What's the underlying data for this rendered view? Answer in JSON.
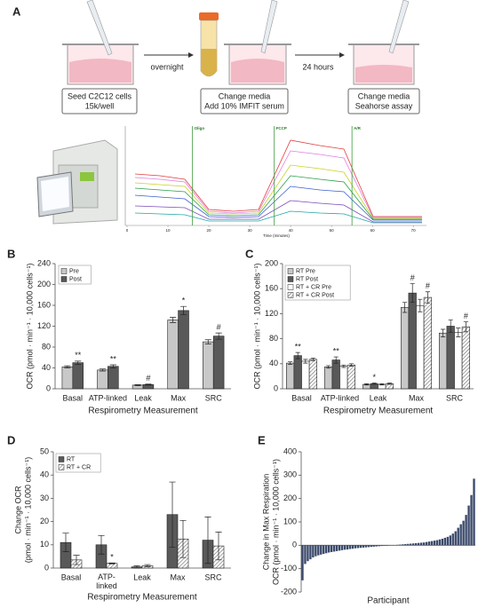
{
  "panel_a": {
    "label": "A",
    "steps": [
      [
        "Seed C2C12 cells",
        "15k/well"
      ],
      [
        "Change media",
        "Add 10% IMFIT serum"
      ],
      [
        "Change media",
        "Seahorse assay"
      ]
    ],
    "arrows": [
      "overnight",
      "24 hours"
    ],
    "inset": {
      "x_label": "Time (minutes)",
      "xlim": [
        0,
        73
      ],
      "xticks": [
        0,
        10,
        20,
        30,
        40,
        50,
        60,
        70
      ],
      "injections": [
        {
          "label": "Oligo",
          "time": 16
        },
        {
          "label": "FCCP",
          "time": 36
        },
        {
          "label": "A/R",
          "time": 55
        }
      ]
    }
  },
  "chart_data": [
    {
      "type": "bar",
      "panel_label": "B",
      "y_label": [
        "OCR (pmol · min⁻¹ · 10,000 cells⁻¹)"
      ],
      "x_label": "Respirometry Measurement",
      "categories": [
        "Basal",
        "ATP-linked",
        "Leak",
        "Max",
        "SRC"
      ],
      "ylim": [
        0,
        240
      ],
      "yticks": [
        0,
        40,
        80,
        120,
        160,
        200,
        240
      ],
      "series": [
        {
          "name": "Pre",
          "color": "#c8c8c8",
          "values": [
            42,
            36,
            7,
            132,
            90
          ],
          "errors": [
            2,
            2,
            1,
            5,
            4
          ],
          "marks": [
            null,
            null,
            null,
            null,
            null
          ]
        },
        {
          "name": "Post",
          "color": "#595959",
          "values": [
            50,
            43,
            8,
            150,
            101
          ],
          "errors": [
            3,
            3,
            1,
            8,
            6
          ],
          "marks": [
            "**",
            "**",
            "#",
            "*",
            "#"
          ]
        }
      ]
    },
    {
      "type": "bar",
      "panel_label": "C",
      "y_label": [
        "OCR (pmol · min⁻¹ · 10,000 cells⁻¹)"
      ],
      "x_label": "Respirometry Measurement",
      "categories": [
        "Basal",
        "ATP-linked",
        "Leak",
        "Max",
        "SRC"
      ],
      "ylim": [
        0,
        200
      ],
      "yticks": [
        0,
        40,
        80,
        120,
        160,
        200
      ],
      "series": [
        {
          "name": "RT Pre",
          "color": "#c8c8c8",
          "values": [
            41,
            35,
            7,
            130,
            89
          ],
          "errors": [
            2,
            2,
            1,
            8,
            6
          ],
          "marks": [
            null,
            null,
            null,
            null,
            null
          ]
        },
        {
          "name": "RT Post",
          "color": "#595959",
          "values": [
            53,
            46,
            8,
            153,
            100
          ],
          "errors": [
            5,
            5,
            1,
            15,
            10
          ],
          "marks": [
            "**",
            "**",
            "*",
            "#",
            null
          ]
        },
        {
          "name": "RT + CR Pre",
          "color": "#ffffff",
          "values": [
            44,
            36,
            7,
            133,
            90
          ],
          "errors": [
            3,
            2,
            1,
            10,
            7
          ],
          "marks": [
            null,
            null,
            null,
            null,
            null
          ]
        },
        {
          "name": "RT + CR Post",
          "color": "#ffffff",
          "pattern": "hatch",
          "values": [
            47,
            38,
            8,
            146,
            99
          ],
          "errors": [
            2,
            2,
            1,
            9,
            8
          ],
          "marks": [
            null,
            null,
            null,
            "#",
            "#"
          ]
        }
      ]
    },
    {
      "type": "bar",
      "panel_label": "D",
      "y_label": [
        "Change OCR",
        "(pmol · min⁻¹ · 10,000 cells⁻¹)"
      ],
      "x_label": "Respirometry Measurement",
      "categories": [
        "Basal",
        "ATP-\nlinked",
        "Leak",
        "Max",
        "SRC"
      ],
      "ylim": [
        0,
        50
      ],
      "yticks": [
        0,
        10,
        20,
        30,
        40,
        50
      ],
      "series": [
        {
          "name": "RT",
          "color": "#595959",
          "values": [
            11,
            10,
            0.5,
            23,
            12
          ],
          "errors": [
            4,
            4,
            0.5,
            14,
            10
          ],
          "marks": [
            null,
            null,
            null,
            null,
            null
          ]
        },
        {
          "name": "RT + CR",
          "color": "#ffffff",
          "pattern": "hatch",
          "values": [
            3.5,
            2,
            1,
            12.5,
            9.5
          ],
          "errors": [
            2,
            0.2,
            0.5,
            8,
            6
          ],
          "marks": [
            null,
            "*",
            null,
            null,
            null
          ]
        }
      ]
    },
    {
      "type": "waterfall",
      "panel_label": "E",
      "y_label": [
        "Change in Max Respiration",
        "OCR (pmol · min⁻¹ · 10,000 cells⁻¹)"
      ],
      "x_label": "Participant",
      "ylim": [
        -200,
        400
      ],
      "yticks": [
        -200,
        -100,
        0,
        100,
        200,
        300,
        400
      ],
      "color": "#3b4a6b",
      "values": [
        -150,
        -80,
        -68,
        -60,
        -52,
        -47,
        -43,
        -40,
        -37,
        -34,
        -31,
        -29,
        -27,
        -25,
        -23,
        -21,
        -19,
        -18,
        -16,
        -15,
        -13,
        -12,
        -11,
        -10,
        -9,
        -8,
        -7,
        -6,
        -5,
        -4,
        -3,
        -2,
        -2,
        -1,
        0,
        1,
        2,
        3,
        4,
        5,
        6,
        7,
        8,
        9,
        10,
        11,
        12,
        14,
        16,
        18,
        20,
        22,
        25,
        28,
        32,
        36,
        42,
        50,
        60,
        75,
        90,
        105,
        130,
        170,
        215,
        285
      ]
    }
  ]
}
